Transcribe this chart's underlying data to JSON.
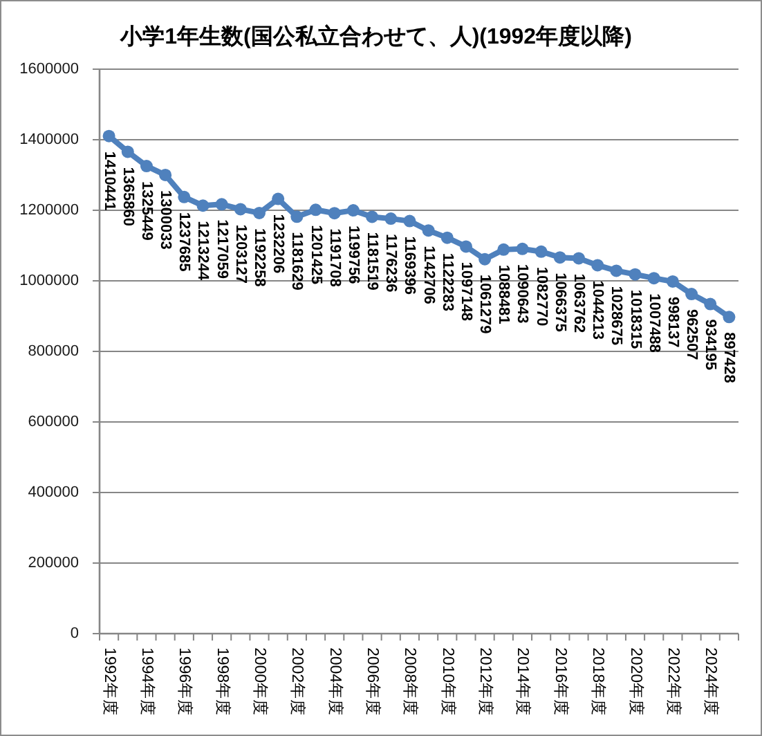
{
  "chart_data": {
    "type": "line",
    "title": "小学1年生数(国公私立合わせて、人)(1992年度以降)",
    "categories": [
      "1992年度",
      null,
      "1994年度",
      null,
      "1996年度",
      null,
      "1998年度",
      null,
      "2000年度",
      null,
      "2002年度",
      null,
      "2004年度",
      null,
      "2006年度",
      null,
      "2008年度",
      null,
      "2010年度",
      null,
      "2012年度",
      null,
      "2014年度",
      null,
      "2016年度",
      null,
      "2018年度",
      null,
      "2020年度",
      null,
      "2022年度",
      null,
      "2024年度",
      null
    ],
    "series": [
      {
        "color": "#4f81bd",
        "values": [
          1410441,
          1365860,
          1325449,
          1300033,
          1237685,
          1213244,
          1217059,
          1203127,
          1192258,
          1232206,
          1181629,
          1201425,
          1191708,
          1199756,
          1181519,
          1176236,
          1169396,
          1142706,
          1122283,
          1097148,
          1061279,
          1088481,
          1090643,
          1082770,
          1066375,
          1063762,
          1044213,
          1028675,
          1018315,
          1007488,
          998137,
          962507,
          934195,
          897428
        ]
      }
    ],
    "ylim": [
      0,
      1600000
    ],
    "yticks": [
      0,
      200000,
      400000,
      600000,
      800000,
      1000000,
      1200000,
      1400000,
      1600000
    ],
    "grid": "y",
    "marker": "circle",
    "line_style": "solid",
    "data_labels": true
  }
}
